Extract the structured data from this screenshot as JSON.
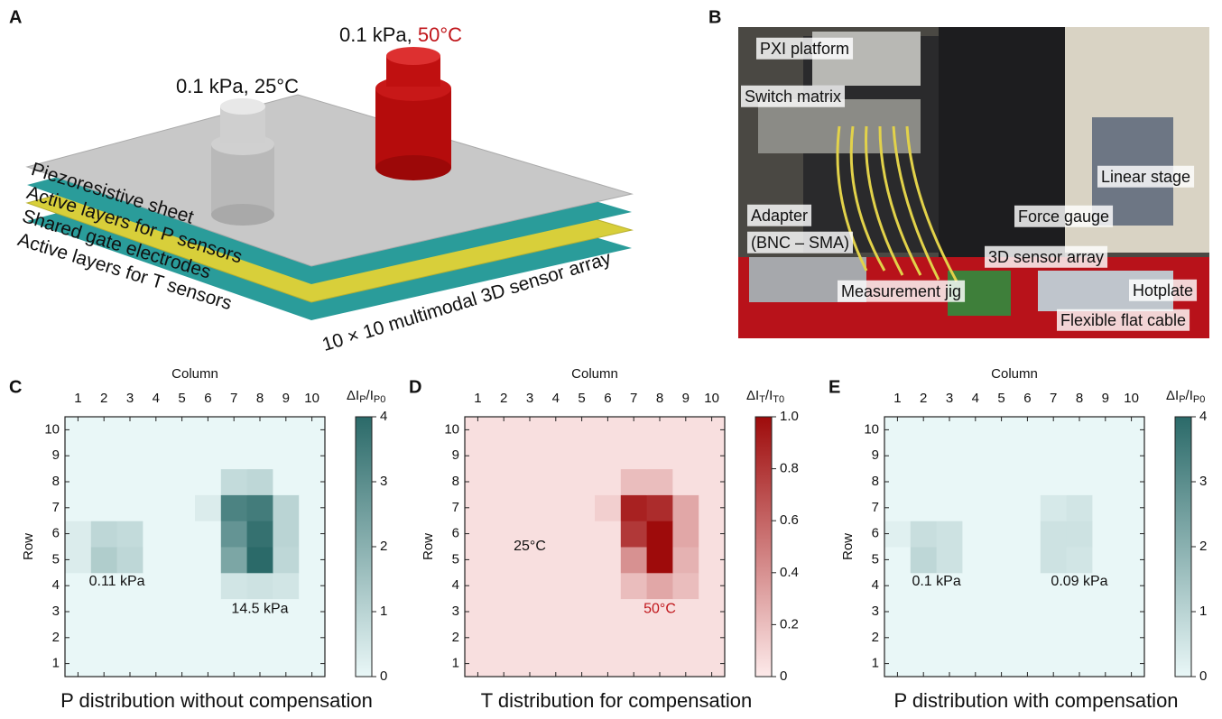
{
  "figure": {
    "panel_a": {
      "label": "A",
      "weight_left": "0.1 kPa, 25°C",
      "weight_right_load": "0.1 kPa, ",
      "weight_right_temp": "50°C",
      "layers": [
        "Piezoresistive sheet",
        "Active layers for P sensors",
        "Shared gate electrodes",
        "Active layers for T sensors"
      ],
      "array_label": "10 × 10 multimodal 3D sensor array"
    },
    "panel_b": {
      "label": "B",
      "labels": [
        "PXI platform",
        "Switch matrix",
        "Adapter",
        "(BNC – SMA)",
        "Linear stage",
        "Force gauge",
        "3D sensor array",
        "Measurement jig",
        "Hotplate",
        "Flexible flat cable"
      ]
    }
  },
  "chart_data": [
    {
      "type": "heatmap",
      "panel_label": "C",
      "title": "P distribution without compensation",
      "xlabel": "Column",
      "ylabel": "Row",
      "colorbar_label": [
        {
          "text": "ΔI"
        },
        {
          "text": "P",
          "sub": true
        },
        {
          "text": "/I"
        },
        {
          "text": "P0",
          "sub": true
        }
      ],
      "x": [
        1,
        2,
        3,
        4,
        5,
        6,
        7,
        8,
        9,
        10
      ],
      "y": [
        1,
        2,
        3,
        4,
        5,
        6,
        7,
        8,
        9,
        10
      ],
      "xlim": [
        0.5,
        10.5
      ],
      "ylim": [
        0.5,
        10.5
      ],
      "xticks": [
        1,
        2,
        3,
        4,
        5,
        6,
        7,
        8,
        9,
        10
      ],
      "yticks": [
        1,
        2,
        3,
        4,
        5,
        6,
        7,
        8,
        9,
        10
      ],
      "z": [
        [
          0,
          0,
          0,
          0,
          0,
          0,
          0,
          0,
          0,
          0
        ],
        [
          0,
          0,
          0,
          0,
          0,
          0,
          0,
          0,
          0,
          0
        ],
        [
          0,
          0,
          0,
          0,
          0,
          0,
          0,
          0,
          0,
          0
        ],
        [
          0,
          0,
          0,
          0,
          0,
          0,
          0.5,
          0.6,
          0.5,
          0
        ],
        [
          0.3,
          1.2,
          0.9,
          0,
          0,
          0,
          2.3,
          4.0,
          0.9,
          0
        ],
        [
          0.3,
          0.9,
          0.8,
          0,
          0,
          0,
          2.8,
          3.8,
          1.0,
          0
        ],
        [
          0,
          0,
          0,
          0,
          0,
          0.3,
          3.3,
          3.5,
          1.0,
          0
        ],
        [
          0,
          0,
          0,
          0,
          0,
          0,
          0.8,
          0.9,
          0,
          0
        ],
        [
          0,
          0,
          0,
          0,
          0,
          0,
          0,
          0,
          0,
          0
        ],
        [
          0,
          0,
          0,
          0,
          0,
          0,
          0,
          0,
          0,
          0
        ]
      ],
      "zlim": [
        0,
        4
      ],
      "zticks": [
        0,
        1,
        2,
        3,
        4
      ],
      "colormap": [
        "#e9f7f7",
        "#2b6a69"
      ],
      "annotations": [
        {
          "text": "0.11 kPa"
        },
        {
          "text": "14.5 kPa"
        }
      ]
    },
    {
      "type": "heatmap",
      "panel_label": "D",
      "title": "T distribution for compensation",
      "xlabel": "Column",
      "ylabel": "Row",
      "colorbar_label": [
        {
          "text": "ΔI"
        },
        {
          "text": "T",
          "sub": true
        },
        {
          "text": "/I"
        },
        {
          "text": "T0",
          "sub": true
        }
      ],
      "x": [
        1,
        2,
        3,
        4,
        5,
        6,
        7,
        8,
        9,
        10
      ],
      "y": [
        1,
        2,
        3,
        4,
        5,
        6,
        7,
        8,
        9,
        10
      ],
      "xlim": [
        0.5,
        10.5
      ],
      "ylim": [
        0.5,
        10.5
      ],
      "xticks": [
        1,
        2,
        3,
        4,
        5,
        6,
        7,
        8,
        9,
        10
      ],
      "yticks": [
        1,
        2,
        3,
        4,
        5,
        6,
        7,
        8,
        9,
        10
      ],
      "z": [
        [
          0.05,
          0.05,
          0.05,
          0.05,
          0.05,
          0.05,
          0.05,
          0.05,
          0.05,
          0.05
        ],
        [
          0.05,
          0.05,
          0.05,
          0.05,
          0.05,
          0.05,
          0.05,
          0.05,
          0.05,
          0.05
        ],
        [
          0.05,
          0.05,
          0.05,
          0.05,
          0.05,
          0.05,
          0.05,
          0.05,
          0.05,
          0.05
        ],
        [
          0.05,
          0.05,
          0.05,
          0.05,
          0.05,
          0.05,
          0.2,
          0.3,
          0.2,
          0.05
        ],
        [
          0.05,
          0.05,
          0.05,
          0.05,
          0.05,
          0.05,
          0.4,
          1.0,
          0.25,
          0.05
        ],
        [
          0.05,
          0.05,
          0.05,
          0.05,
          0.05,
          0.05,
          0.8,
          1.0,
          0.3,
          0.05
        ],
        [
          0.05,
          0.05,
          0.05,
          0.05,
          0.05,
          0.12,
          0.9,
          0.85,
          0.3,
          0.05
        ],
        [
          0.05,
          0.05,
          0.05,
          0.05,
          0.05,
          0.05,
          0.2,
          0.2,
          0.05,
          0.05
        ],
        [
          0.05,
          0.05,
          0.05,
          0.05,
          0.05,
          0.05,
          0.05,
          0.05,
          0.05,
          0.05
        ],
        [
          0.05,
          0.05,
          0.05,
          0.05,
          0.05,
          0.05,
          0.05,
          0.05,
          0.05,
          0.05
        ]
      ],
      "zlim": [
        0,
        1
      ],
      "zticks": [
        0,
        0.2,
        0.4,
        0.6,
        0.8,
        {
          "value": 1,
          "label": "1.0"
        }
      ],
      "colormap": [
        "#fdeaea",
        "#9e0b0b"
      ],
      "annotations": [
        {
          "text": "25°C"
        },
        {
          "text": "50°C",
          "color": "#c0161b"
        }
      ]
    },
    {
      "type": "heatmap",
      "panel_label": "E",
      "title": "P distribution with compensation",
      "xlabel": "Column",
      "ylabel": "Row",
      "colorbar_label": [
        {
          "text": "ΔI"
        },
        {
          "text": "P",
          "sub": true
        },
        {
          "text": "/I"
        },
        {
          "text": "P0",
          "sub": true
        }
      ],
      "x": [
        1,
        2,
        3,
        4,
        5,
        6,
        7,
        8,
        9,
        10
      ],
      "y": [
        1,
        2,
        3,
        4,
        5,
        6,
        7,
        8,
        9,
        10
      ],
      "xlim": [
        0.5,
        10.5
      ],
      "ylim": [
        0.5,
        10.5
      ],
      "xticks": [
        1,
        2,
        3,
        4,
        5,
        6,
        7,
        8,
        9,
        10
      ],
      "yticks": [
        1,
        2,
        3,
        4,
        5,
        6,
        7,
        8,
        9,
        10
      ],
      "z": [
        [
          0,
          0,
          0,
          0,
          0,
          0,
          0,
          0,
          0,
          0
        ],
        [
          0,
          0,
          0,
          0,
          0,
          0,
          0,
          0,
          0,
          0
        ],
        [
          0,
          0,
          0,
          0,
          0,
          0,
          0,
          0,
          0,
          0
        ],
        [
          0,
          0,
          0,
          0,
          0,
          0,
          0,
          0,
          0,
          0
        ],
        [
          0,
          0.9,
          0.6,
          0,
          0,
          0,
          0.6,
          0.5,
          0,
          0
        ],
        [
          0.2,
          0.7,
          0.6,
          0,
          0,
          0,
          0.6,
          0.6,
          0,
          0
        ],
        [
          0,
          0,
          0,
          0,
          0,
          0,
          0.4,
          0.5,
          0,
          0
        ],
        [
          0,
          0,
          0,
          0,
          0,
          0,
          0,
          0,
          0,
          0
        ],
        [
          0,
          0,
          0,
          0,
          0,
          0,
          0,
          0,
          0,
          0
        ],
        [
          0,
          0,
          0,
          0,
          0,
          0,
          0,
          0,
          0,
          0
        ]
      ],
      "zlim": [
        0,
        4
      ],
      "zticks": [
        0,
        1,
        2,
        3,
        4
      ],
      "colormap": [
        "#e9f7f7",
        "#2b6a69"
      ],
      "annotations": [
        {
          "text": "0.1 kPa"
        },
        {
          "text": "0.09 kPa"
        }
      ]
    }
  ]
}
